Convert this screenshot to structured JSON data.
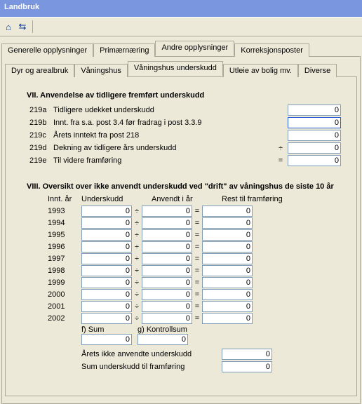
{
  "title": "Landbruk",
  "toolbar": {
    "icon1": "⌂",
    "icon2": "⇆"
  },
  "outerTabs": {
    "items": [
      "Generelle opplysninger",
      "Primærnæring",
      "Andre opplysninger",
      "Korreksjonsposter"
    ],
    "activeIndex": 2
  },
  "innerTabs": {
    "items": [
      "Dyr og arealbruk",
      "Våningshus",
      "Våningshus underskudd",
      "Utleie av bolig mv.",
      "Diverse"
    ],
    "activeIndex": 2
  },
  "section7": {
    "title": "VII. Anvendelse av tidligere fremført underskudd",
    "rows": [
      {
        "code": "219a",
        "label": "Tidligere udekket underskudd",
        "op": "",
        "value": "0"
      },
      {
        "code": "219b",
        "label": "Innt. fra s.a. post 3.4 før fradrag i post 3.3.9",
        "op": "",
        "value": "0"
      },
      {
        "code": "219c",
        "label": "Årets inntekt fra post 218",
        "op": "",
        "value": "0"
      },
      {
        "code": "219d",
        "label": "Dekning av tidligere års underskudd",
        "op": "÷",
        "value": "0"
      },
      {
        "code": "219e",
        "label": "Til videre framføring",
        "op": "=",
        "value": "0"
      }
    ]
  },
  "section8": {
    "title": "VIII. Oversikt over ikke anvendt underskudd ved \"drift\" av våningshus de siste 10 år",
    "headers": {
      "year": "Innt. år",
      "u": "Underskudd",
      "a": "Anvendt i år",
      "r": "Rest til framføring"
    },
    "rows": [
      {
        "year": "1993",
        "u": "0",
        "a": "0",
        "r": "0"
      },
      {
        "year": "1994",
        "u": "0",
        "a": "0",
        "r": "0"
      },
      {
        "year": "1995",
        "u": "0",
        "a": "0",
        "r": "0"
      },
      {
        "year": "1996",
        "u": "0",
        "a": "0",
        "r": "0"
      },
      {
        "year": "1997",
        "u": "0",
        "a": "0",
        "r": "0"
      },
      {
        "year": "1998",
        "u": "0",
        "a": "0",
        "r": "0"
      },
      {
        "year": "1999",
        "u": "0",
        "a": "0",
        "r": "0"
      },
      {
        "year": "2000",
        "u": "0",
        "a": "0",
        "r": "0"
      },
      {
        "year": "2001",
        "u": "0",
        "a": "0",
        "r": "0"
      },
      {
        "year": "2002",
        "u": "0",
        "a": "0",
        "r": "0"
      }
    ],
    "op1": "÷",
    "op2": "=",
    "sum": {
      "fLabel": "f) Sum",
      "gLabel": "g) Kontrollsum",
      "f": "0",
      "g": "0"
    },
    "bottom": [
      {
        "label": "Årets ikke anvendte underskudd",
        "value": "0"
      },
      {
        "label": "Sum underskudd til framføring",
        "value": "0"
      }
    ]
  },
  "style": {
    "bg": "#ece9d8",
    "titlebar": "#7a96df",
    "border": "#aca899",
    "fieldBorder": "#7f9db9",
    "fieldBg": "#ffffff"
  }
}
